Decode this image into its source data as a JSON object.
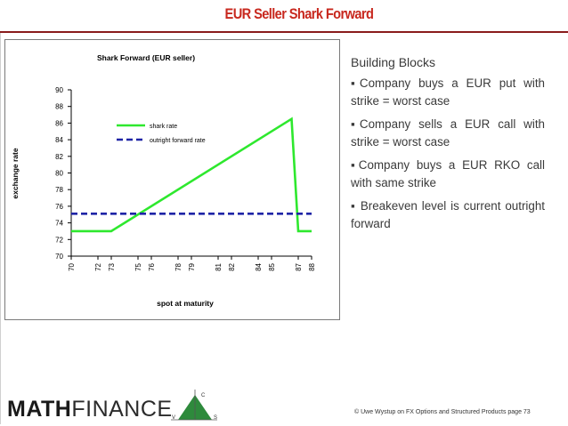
{
  "slide": {
    "title": "EUR Seller Shark Forward",
    "footer": "© Uwe Wystup on FX Options and Structured Products page 73"
  },
  "logo": {
    "word_math": "MATH",
    "word_finance": "FINANCE",
    "mark_labels": [
      "C",
      "V",
      "S"
    ]
  },
  "bullets": {
    "heading": "Building Blocks",
    "items": [
      "▪Company buys a EUR put with strike = worst case",
      "▪Company sells a EUR call with strike = worst case",
      "▪Company buys a EUR RKO call with same strike",
      "▪ Breakeven level is current outright forward"
    ]
  },
  "colors": {
    "title": "#c8281e",
    "shark_rate": "#2ee82e",
    "outright_forward_rate": "#1f24a6"
  },
  "chart_data": {
    "type": "line",
    "title": "Shark Forward (EUR seller)",
    "xlabel": "spot at maturity",
    "ylabel": "exchange rate",
    "x_tick_labels": [
      "70",
      "72",
      "73",
      "75",
      "76",
      "78",
      "79",
      "81",
      "82",
      "84",
      "85",
      "87",
      "88"
    ],
    "x": [
      70,
      72,
      73,
      75,
      76,
      78,
      79,
      81,
      82,
      84,
      85,
      87,
      88
    ],
    "ylim": [
      70,
      90
    ],
    "y_ticks": [
      70,
      72,
      74,
      76,
      78,
      80,
      82,
      84,
      86,
      88,
      90
    ],
    "legend_position": "top-right",
    "series": [
      {
        "name": "shark rate",
        "points": [
          [
            70,
            73
          ],
          [
            73,
            73
          ],
          [
            86.5,
            86.5
          ],
          [
            87,
            73
          ],
          [
            88,
            73
          ]
        ]
      },
      {
        "name": "outright forward rate",
        "points": [
          [
            70,
            75.1
          ],
          [
            88,
            75.1
          ]
        ]
      }
    ]
  }
}
